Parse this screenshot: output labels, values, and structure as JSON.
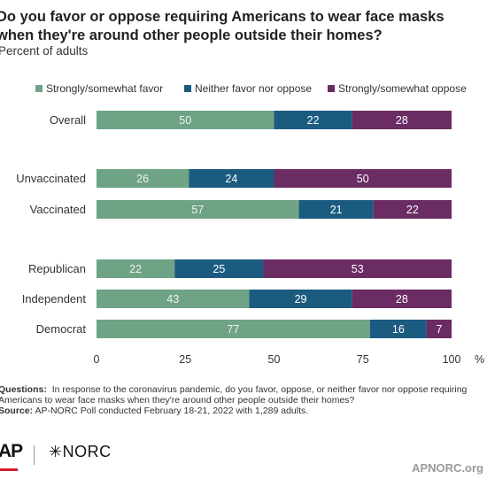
{
  "title": "Do you favor or oppose requiring Americans to wear face masks when they're around other people outside their homes?",
  "subtitle": "Percent of adults",
  "chart_data": {
    "type": "bar",
    "stacked": true,
    "orientation": "horizontal",
    "categories": [
      "Overall",
      "Unvaccinated",
      "Vaccinated",
      "Republican",
      "Independent",
      "Democrat"
    ],
    "series": [
      {
        "name": "Strongly/somewhat favor",
        "color": "#6fa386",
        "values": [
          50,
          26,
          57,
          22,
          43,
          77
        ]
      },
      {
        "name": "Neither favor nor oppose",
        "color": "#1b5b80",
        "values": [
          22,
          24,
          21,
          25,
          29,
          16
        ]
      },
      {
        "name": "Strongly/somewhat oppose",
        "color": "#6a2c63",
        "values": [
          28,
          50,
          22,
          53,
          28,
          7
        ]
      }
    ],
    "xlim": [
      0,
      100
    ],
    "xticks": [
      "0",
      "25",
      "50",
      "75",
      "100"
    ],
    "xunit": "%",
    "legend": "top",
    "grid": false
  },
  "notes": {
    "questions_label": "Questions:",
    "questions_text": "In response to the coronavirus pandemic, do you favor, oppose, or neither favor nor oppose requiring Americans to wear face masks when they're around other people outside their homes?",
    "source_label": "Source:",
    "source_text": "AP-NORC Poll conducted February 18-21, 2022 with 1,289 adults."
  },
  "footer": {
    "logo_ap": "AP",
    "logo_norc": "✳NORC",
    "site": "APNORC.org"
  }
}
